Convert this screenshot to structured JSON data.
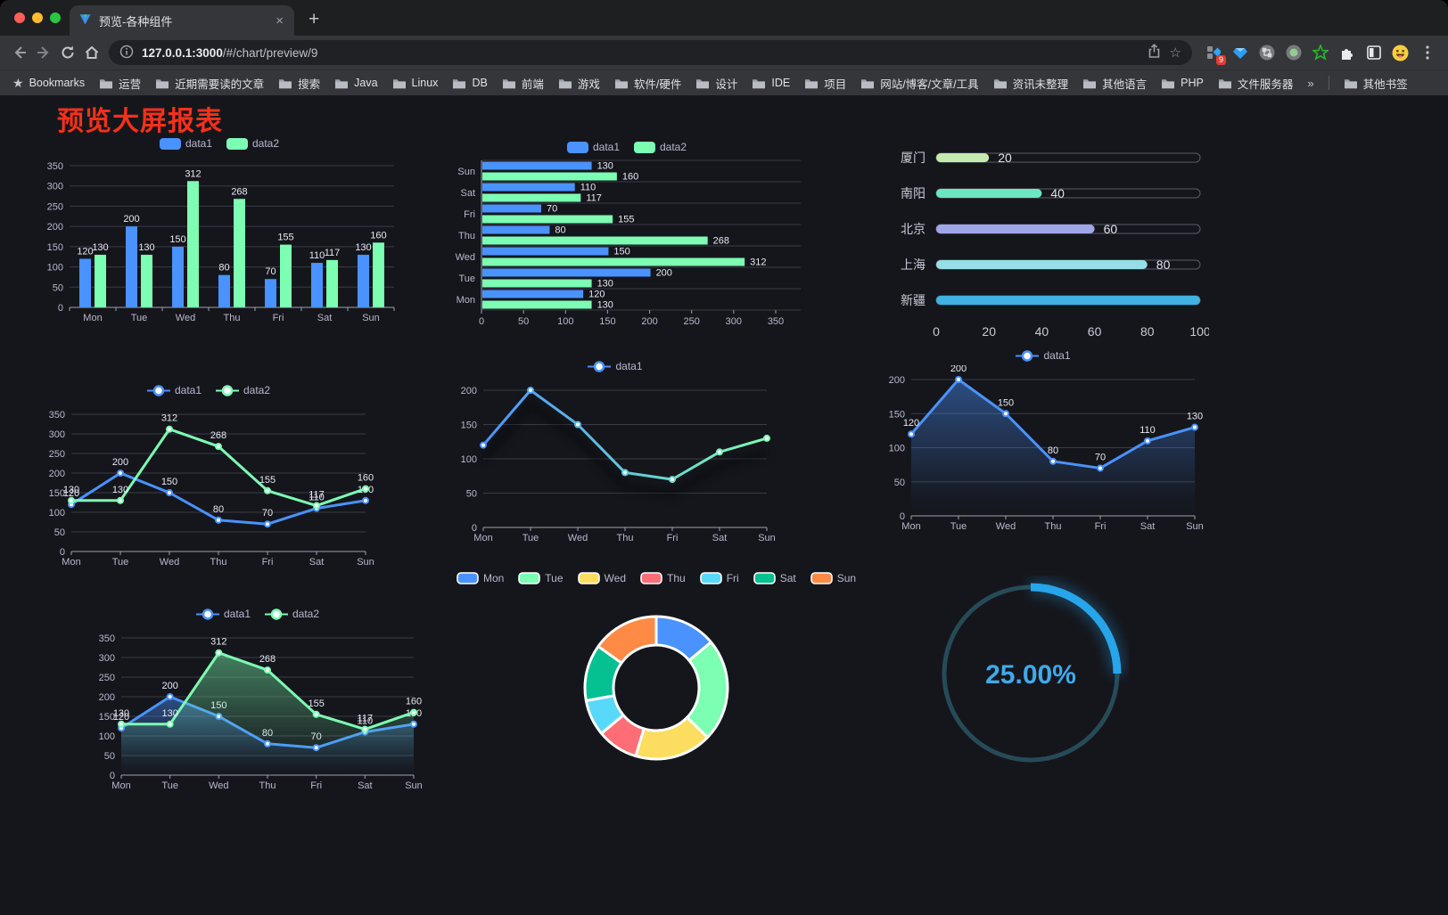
{
  "browser": {
    "tab_title": "预览-各种组件",
    "url_host": "127.0.0.1:3000",
    "url_path": "/#/chart/preview/9",
    "bookmarks_label": "Bookmarks",
    "folders": [
      "运营",
      "近期需要读的文章",
      "搜索",
      "Java",
      "Linux",
      "DB",
      "前端",
      "游戏",
      "软件/硬件",
      "设计",
      "IDE",
      "项目",
      "网站/博客/文章/工具",
      "资讯未整理",
      "其他语言",
      "PHP",
      "文件服务器"
    ],
    "overflow": "»",
    "other_bookmarks": "其他书签",
    "extension_badge": "9"
  },
  "page": {
    "title": "预览大屏报表",
    "title_color": "#f6301a",
    "accent_blue": "#4992ff",
    "accent_green": "#7cffb2"
  },
  "chart_data": [
    {
      "type": "bar",
      "categories": [
        "Mon",
        "Tue",
        "Wed",
        "Thu",
        "Fri",
        "Sat",
        "Sun"
      ],
      "series": [
        {
          "name": "data1",
          "color": "#4992ff",
          "values": [
            120,
            200,
            150,
            80,
            70,
            110,
            130
          ]
        },
        {
          "name": "data2",
          "color": "#7cffb2",
          "values": [
            130,
            130,
            312,
            268,
            155,
            117,
            160
          ]
        }
      ],
      "ylim": [
        0,
        350
      ],
      "ytick_step": 50,
      "legend_position": "top",
      "grid": true
    },
    {
      "type": "bar-horizontal",
      "categories": [
        "Sun",
        "Sat",
        "Fri",
        "Thu",
        "Wed",
        "Tue",
        "Mon"
      ],
      "series": [
        {
          "name": "data1",
          "color": "#4992ff",
          "values": [
            130,
            110,
            70,
            80,
            150,
            200,
            120
          ]
        },
        {
          "name": "data2",
          "color": "#7cffb2",
          "values": [
            160,
            117,
            155,
            268,
            312,
            130,
            130
          ]
        }
      ],
      "xlim": [
        0,
        350
      ],
      "xtick_step": 50,
      "legend_position": "top",
      "grid": true
    },
    {
      "type": "progress",
      "items": [
        {
          "label": "厦门",
          "value": 20,
          "color": "#c4ebad"
        },
        {
          "label": "南阳",
          "value": 40,
          "color": "#6be6c1"
        },
        {
          "label": "北京",
          "value": 60,
          "color": "#a0a7e6"
        },
        {
          "label": "上海",
          "value": 80,
          "color": "#96dee8"
        },
        {
          "label": "新疆",
          "value": 100,
          "color": "#3fb1e3"
        }
      ],
      "xlim": [
        0,
        100
      ],
      "xticks": [
        0,
        20,
        40,
        60,
        80,
        100
      ]
    },
    {
      "type": "line",
      "categories": [
        "Mon",
        "Tue",
        "Wed",
        "Thu",
        "Fri",
        "Sat",
        "Sun"
      ],
      "series": [
        {
          "name": "data1",
          "color": "#4992ff",
          "values": [
            120,
            200,
            150,
            80,
            70,
            110,
            130
          ]
        },
        {
          "name": "data2",
          "color": "#7cffb2",
          "values": [
            130,
            130,
            312,
            268,
            155,
            117,
            160
          ]
        }
      ],
      "ylim": [
        0,
        350
      ],
      "ytick_step": 50,
      "labels": true,
      "legend_position": "top"
    },
    {
      "type": "line-gradient",
      "categories": [
        "Mon",
        "Tue",
        "Wed",
        "Thu",
        "Fri",
        "Sat",
        "Sun"
      ],
      "series": [
        {
          "name": "data1",
          "values": [
            120,
            200,
            150,
            80,
            70,
            110,
            130
          ]
        }
      ],
      "gradient": [
        "#4992ff",
        "#7cffb2"
      ],
      "ylim": [
        0,
        200
      ],
      "ytick_step": 50,
      "labels": false,
      "legend_position": "top"
    },
    {
      "type": "area",
      "categories": [
        "Mon",
        "Tue",
        "Wed",
        "Thu",
        "Fri",
        "Sat",
        "Sun"
      ],
      "series": [
        {
          "name": "data1",
          "color": "#4992ff",
          "area": true,
          "values": [
            120,
            200,
            150,
            80,
            70,
            110,
            130
          ]
        }
      ],
      "ylim": [
        0,
        200
      ],
      "ytick_step": 50,
      "labels": true,
      "legend_position": "top"
    },
    {
      "type": "area",
      "categories": [
        "Mon",
        "Tue",
        "Wed",
        "Thu",
        "Fri",
        "Sat",
        "Sun"
      ],
      "series": [
        {
          "name": "data1",
          "color": "#4992ff",
          "area": true,
          "values": [
            120,
            200,
            150,
            80,
            70,
            110,
            130
          ]
        },
        {
          "name": "data2",
          "color": "#7cffb2",
          "area": true,
          "values": [
            130,
            130,
            312,
            268,
            155,
            117,
            160
          ]
        }
      ],
      "ylim": [
        0,
        350
      ],
      "ytick_step": 50,
      "labels": true,
      "legend_position": "top"
    },
    {
      "type": "pie",
      "inner_radius_ratio": 0.6,
      "slices": [
        {
          "label": "Mon",
          "value": 120,
          "color": "#4992ff"
        },
        {
          "label": "Tue",
          "value": 200,
          "color": "#7cffb2"
        },
        {
          "label": "Wed",
          "value": 150,
          "color": "#fddd60"
        },
        {
          "label": "Thu",
          "value": 80,
          "color": "#ff6e76"
        },
        {
          "label": "Fri",
          "value": 70,
          "color": "#58d9f9"
        },
        {
          "label": "Sat",
          "value": 110,
          "color": "#05c091"
        },
        {
          "label": "Sun",
          "value": 130,
          "color": "#ff8a45"
        }
      ],
      "legend_position": "top"
    },
    {
      "type": "gauge",
      "label": "25.00%",
      "percent": 25,
      "arc_color": "#27a5ea",
      "track_color": "#264b58",
      "text_color": "#41a9e9"
    }
  ]
}
